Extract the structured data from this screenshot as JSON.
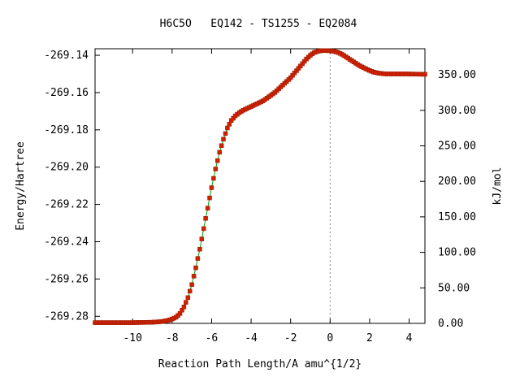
{
  "chart_data": {
    "type": "line",
    "title": "H6C5O   EQ142 - TS1255 - EQ2084",
    "xlabel": "Reaction Path Length/A amu^{1/2}",
    "ylabel": "Energy/Hartree",
    "y2label": "kJ/mol",
    "xlim": [
      -11.9,
      4.8
    ],
    "ylim": [
      -269.2838,
      -269.1365
    ],
    "y2lim": [
      0,
      386.7
    ],
    "xticks": [
      -10,
      -8,
      -6,
      -4,
      -2,
      0,
      2,
      4
    ],
    "xtick_labels": [
      "-10",
      "-8",
      "-6",
      "-4",
      "-2",
      "0",
      "2",
      "4"
    ],
    "yticks": [
      -269.28,
      -269.26,
      -269.24,
      -269.22,
      -269.2,
      -269.18,
      -269.16,
      -269.14
    ],
    "ytick_labels": [
      "-269.28",
      "-269.26",
      "-269.24",
      "-269.22",
      "-269.20",
      "-269.18",
      "-269.16",
      "-269.14"
    ],
    "y2ticks": [
      0,
      50,
      100,
      150,
      200,
      250,
      300,
      350
    ],
    "y2tick_labels": [
      "0.00",
      "50.00",
      "100.00",
      "150.00",
      "200.00",
      "250.00",
      "300.00",
      "350.00"
    ],
    "ts_x": 0,
    "grid": false,
    "series": [
      {
        "marker_color": "#cc2200",
        "line_color": "#00a000",
        "x": [
          -11.9,
          -10,
          -9,
          -8.5,
          -8.2,
          -8.0,
          -7.8,
          -7.6,
          -7.4,
          -7.2,
          -7.0,
          -6.8,
          -6.6,
          -6.4,
          -6.2,
          -6.0,
          -5.8,
          -5.6,
          -5.4,
          -5.2,
          -5.0,
          -4.8,
          -4.6,
          -4.4,
          -4.2,
          -4.0,
          -3.8,
          -3.6,
          -3.4,
          -3.2,
          -3.0,
          -2.8,
          -2.6,
          -2.4,
          -2.2,
          -2.0,
          -1.8,
          -1.6,
          -1.4,
          -1.2,
          -1.0,
          -0.8,
          -0.6,
          -0.4,
          -0.2,
          0,
          0.2,
          0.4,
          0.6,
          0.8,
          1.0,
          1.2,
          1.4,
          1.6,
          1.8,
          2.0,
          2.2,
          2.4,
          2.6,
          2.8,
          3.0,
          3.4,
          3.8,
          4.2,
          4.8
        ],
        "y": [
          -269.2834,
          -269.2834,
          -269.2832,
          -269.2828,
          -269.2822,
          -269.2815,
          -269.2805,
          -269.2785,
          -269.275,
          -269.27,
          -269.263,
          -269.254,
          -269.244,
          -269.233,
          -269.222,
          -269.211,
          -269.201,
          -269.192,
          -269.185,
          -269.179,
          -269.175,
          -269.1725,
          -269.1708,
          -269.1695,
          -269.1685,
          -269.1675,
          -269.1665,
          -269.1655,
          -269.1645,
          -269.163,
          -269.1615,
          -269.16,
          -269.158,
          -269.156,
          -269.154,
          -269.152,
          -269.1495,
          -269.147,
          -269.1445,
          -269.142,
          -269.14,
          -269.1385,
          -269.1378,
          -269.1375,
          -269.1375,
          -269.1376,
          -269.1379,
          -269.1385,
          -269.1395,
          -269.1408,
          -269.1422,
          -269.1436,
          -269.145,
          -269.1462,
          -269.1472,
          -269.1482,
          -269.149,
          -269.1495,
          -269.1498,
          -269.15,
          -269.15,
          -269.15,
          -269.15,
          -269.1501,
          -269.1502
        ]
      }
    ]
  }
}
